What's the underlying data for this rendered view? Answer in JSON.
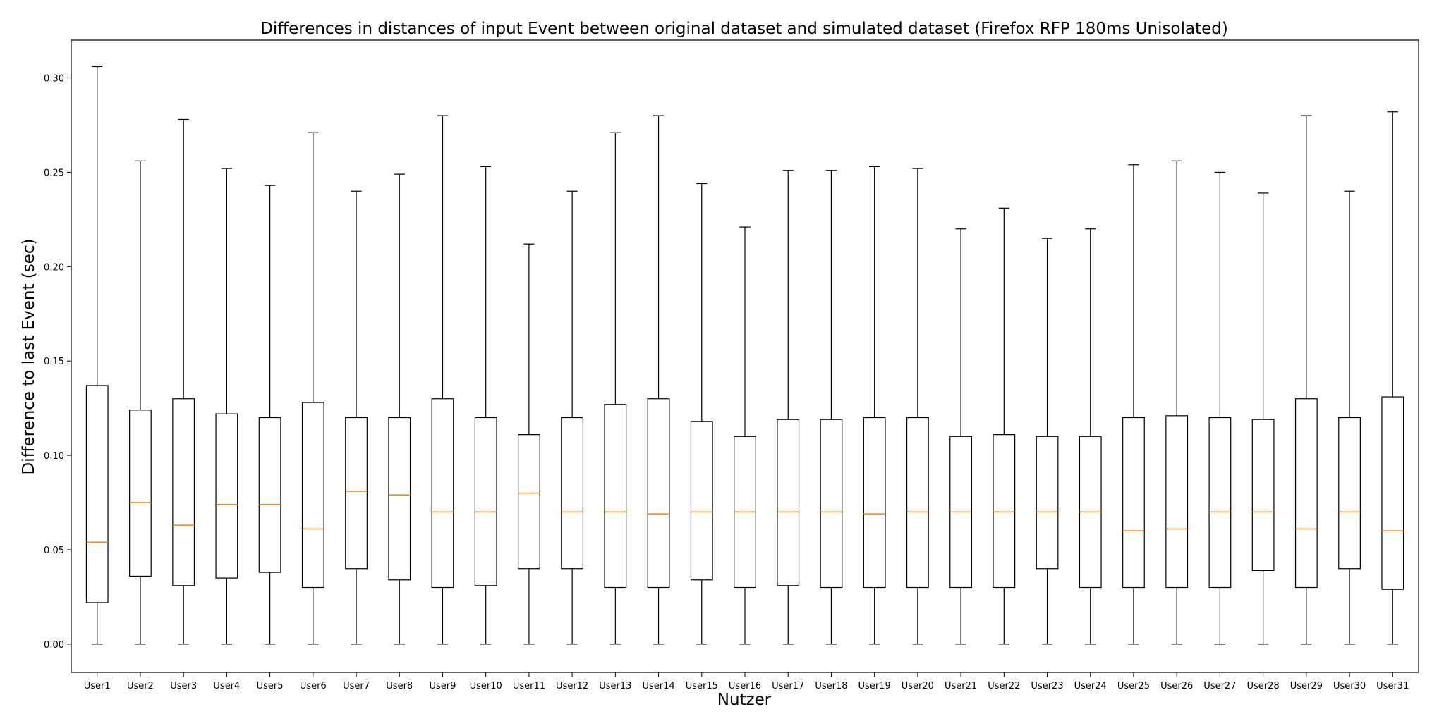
{
  "chart_data": {
    "type": "boxplot",
    "title": "Differences in distances of input Event between original dataset and simulated dataset (Firefox RFP 180ms Unisolated)",
    "xlabel": "Nutzer",
    "ylabel": "Difference to last Event (sec)",
    "ylim": [
      -0.015,
      0.32
    ],
    "yticks": [
      0.0,
      0.05,
      0.1,
      0.15,
      0.2,
      0.25,
      0.3
    ],
    "ytick_labels": [
      "0.00",
      "0.05",
      "0.10",
      "0.15",
      "0.20",
      "0.25",
      "0.30"
    ],
    "grid": false,
    "colors": {
      "box": "#000000",
      "median": "#ff7f0e"
    },
    "categories": [
      "User1",
      "User2",
      "User3",
      "User4",
      "User5",
      "User6",
      "User7",
      "User8",
      "User9",
      "User10",
      "User11",
      "User12",
      "User13",
      "User14",
      "User15",
      "User16",
      "User17",
      "User18",
      "User19",
      "User20",
      "User21",
      "User22",
      "User23",
      "User24",
      "User25",
      "User26",
      "User27",
      "User28",
      "User29",
      "User30",
      "User31"
    ],
    "boxes": [
      {
        "whislo": 0.0,
        "q1": 0.022,
        "med": 0.054,
        "q3": 0.137,
        "whishi": 0.306
      },
      {
        "whislo": 0.0,
        "q1": 0.036,
        "med": 0.075,
        "q3": 0.124,
        "whishi": 0.256
      },
      {
        "whislo": 0.0,
        "q1": 0.031,
        "med": 0.063,
        "q3": 0.13,
        "whishi": 0.278
      },
      {
        "whislo": 0.0,
        "q1": 0.035,
        "med": 0.074,
        "q3": 0.122,
        "whishi": 0.252
      },
      {
        "whislo": 0.0,
        "q1": 0.038,
        "med": 0.074,
        "q3": 0.12,
        "whishi": 0.243
      },
      {
        "whislo": 0.0,
        "q1": 0.03,
        "med": 0.061,
        "q3": 0.128,
        "whishi": 0.271
      },
      {
        "whislo": 0.0,
        "q1": 0.04,
        "med": 0.081,
        "q3": 0.12,
        "whishi": 0.24
      },
      {
        "whislo": 0.0,
        "q1": 0.034,
        "med": 0.079,
        "q3": 0.12,
        "whishi": 0.249
      },
      {
        "whislo": 0.0,
        "q1": 0.03,
        "med": 0.07,
        "q3": 0.13,
        "whishi": 0.28
      },
      {
        "whislo": 0.0,
        "q1": 0.031,
        "med": 0.07,
        "q3": 0.12,
        "whishi": 0.253
      },
      {
        "whislo": 0.0,
        "q1": 0.04,
        "med": 0.08,
        "q3": 0.111,
        "whishi": 0.212
      },
      {
        "whislo": 0.0,
        "q1": 0.04,
        "med": 0.07,
        "q3": 0.12,
        "whishi": 0.24
      },
      {
        "whislo": 0.0,
        "q1": 0.03,
        "med": 0.07,
        "q3": 0.127,
        "whishi": 0.271
      },
      {
        "whislo": 0.0,
        "q1": 0.03,
        "med": 0.069,
        "q3": 0.13,
        "whishi": 0.28
      },
      {
        "whislo": 0.0,
        "q1": 0.034,
        "med": 0.07,
        "q3": 0.118,
        "whishi": 0.244
      },
      {
        "whislo": 0.0,
        "q1": 0.03,
        "med": 0.07,
        "q3": 0.11,
        "whishi": 0.221
      },
      {
        "whislo": 0.0,
        "q1": 0.031,
        "med": 0.07,
        "q3": 0.119,
        "whishi": 0.251
      },
      {
        "whislo": 0.0,
        "q1": 0.03,
        "med": 0.07,
        "q3": 0.119,
        "whishi": 0.251
      },
      {
        "whislo": 0.0,
        "q1": 0.03,
        "med": 0.069,
        "q3": 0.12,
        "whishi": 0.253
      },
      {
        "whislo": 0.0,
        "q1": 0.03,
        "med": 0.07,
        "q3": 0.12,
        "whishi": 0.252
      },
      {
        "whislo": 0.0,
        "q1": 0.03,
        "med": 0.07,
        "q3": 0.11,
        "whishi": 0.22
      },
      {
        "whislo": 0.0,
        "q1": 0.03,
        "med": 0.07,
        "q3": 0.111,
        "whishi": 0.231
      },
      {
        "whislo": 0.0,
        "q1": 0.04,
        "med": 0.07,
        "q3": 0.11,
        "whishi": 0.215
      },
      {
        "whislo": 0.0,
        "q1": 0.03,
        "med": 0.07,
        "q3": 0.11,
        "whishi": 0.22
      },
      {
        "whislo": 0.0,
        "q1": 0.03,
        "med": 0.06,
        "q3": 0.12,
        "whishi": 0.254
      },
      {
        "whislo": 0.0,
        "q1": 0.03,
        "med": 0.061,
        "q3": 0.121,
        "whishi": 0.256
      },
      {
        "whislo": 0.0,
        "q1": 0.03,
        "med": 0.07,
        "q3": 0.12,
        "whishi": 0.25
      },
      {
        "whislo": 0.0,
        "q1": 0.039,
        "med": 0.07,
        "q3": 0.119,
        "whishi": 0.239
      },
      {
        "whislo": 0.0,
        "q1": 0.03,
        "med": 0.061,
        "q3": 0.13,
        "whishi": 0.28
      },
      {
        "whislo": 0.0,
        "q1": 0.04,
        "med": 0.07,
        "q3": 0.12,
        "whishi": 0.24
      },
      {
        "whislo": 0.0,
        "q1": 0.029,
        "med": 0.06,
        "q3": 0.131,
        "whishi": 0.282
      }
    ]
  }
}
